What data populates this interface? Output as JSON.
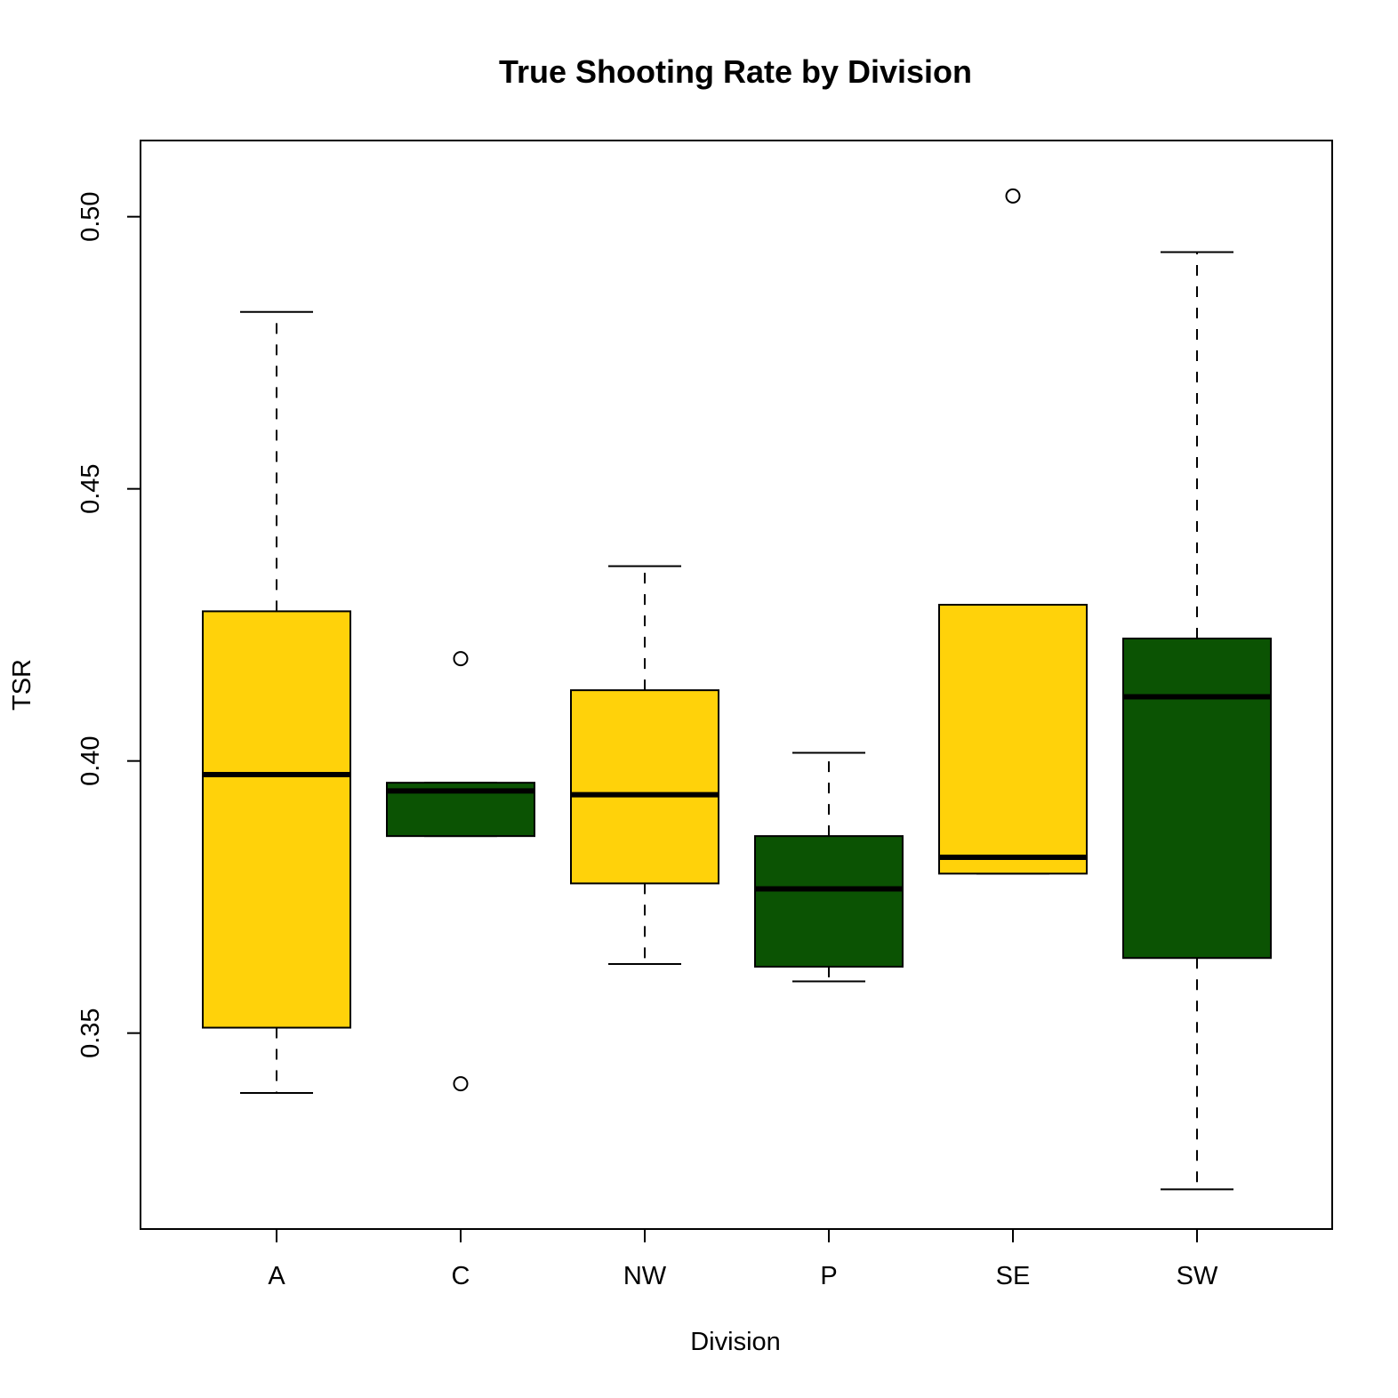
{
  "chart_data": {
    "type": "boxplot",
    "title": "True Shooting Rate by Division",
    "xlabel": "Division",
    "ylabel": "TSR",
    "ylim": [
      0.314,
      0.514
    ],
    "yticks": [
      0.35,
      0.4,
      0.45,
      0.5
    ],
    "ytick_labels": [
      "0.35",
      "0.40",
      "0.45",
      "0.50"
    ],
    "categories": [
      "A",
      "C",
      "NW",
      "P",
      "SE",
      "SW"
    ],
    "colors": {
      "yellow": "#FFD20A",
      "green": "#0B5303"
    },
    "boxes": [
      {
        "name": "A",
        "color": "#FFD20A",
        "whisker_low": 0.339,
        "q1": 0.351,
        "median": 0.3975,
        "q3": 0.4275,
        "whisker_high": 0.4825,
        "outliers": []
      },
      {
        "name": "C",
        "color": "#0B5303",
        "whisker_low": 0.3862,
        "q1": 0.3862,
        "median": 0.3945,
        "q3": 0.396,
        "whisker_high": 0.396,
        "outliers": [
          0.4188,
          0.3407
        ]
      },
      {
        "name": "NW",
        "color": "#FFD20A",
        "whisker_low": 0.3627,
        "q1": 0.3775,
        "median": 0.3938,
        "q3": 0.413,
        "whisker_high": 0.4358,
        "outliers": []
      },
      {
        "name": "P",
        "color": "#0B5303",
        "whisker_low": 0.3595,
        "q1": 0.3622,
        "median": 0.3765,
        "q3": 0.3862,
        "whisker_high": 0.4015,
        "outliers": []
      },
      {
        "name": "SE",
        "color": "#FFD20A",
        "whisker_low": 0.3793,
        "q1": 0.3793,
        "median": 0.3823,
        "q3": 0.4287,
        "whisker_high": 0.4287,
        "outliers": [
          0.5038
        ]
      },
      {
        "name": "SW",
        "color": "#0B5303",
        "whisker_low": 0.3213,
        "q1": 0.3638,
        "median": 0.4118,
        "q3": 0.4225,
        "whisker_high": 0.4935,
        "outliers": []
      }
    ]
  }
}
